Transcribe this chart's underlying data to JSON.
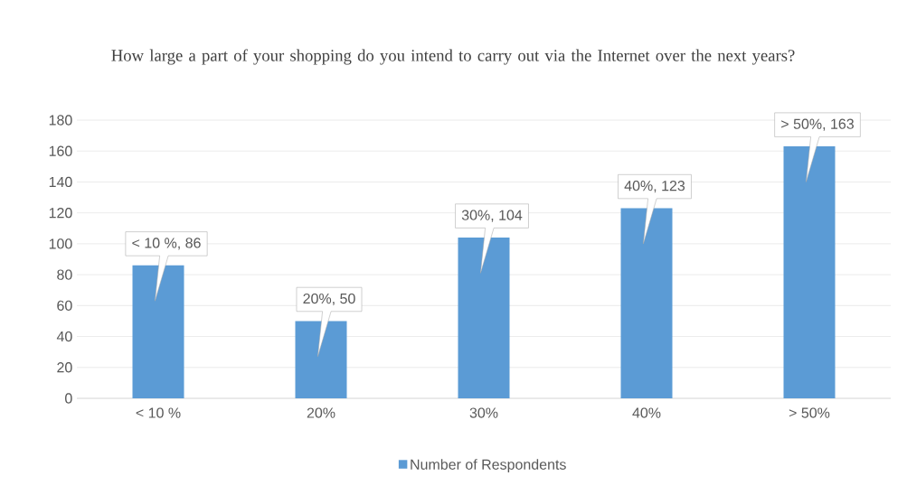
{
  "chart_data": {
    "type": "bar",
    "title": "How large a part of your shopping do you intend to carry out via the Internet over the next years?",
    "categories": [
      "< 10 %",
      "20%",
      "30%",
      "40%",
      "> 50%"
    ],
    "series": [
      {
        "name": "Number of Respondents",
        "color": "#5b9bd5",
        "values": [
          86,
          50,
          104,
          123,
          163
        ],
        "value_labels": [
          "< 10 %, 86",
          "20%, 50",
          "30%, 104",
          "40%, 123",
          "> 50%, 163"
        ]
      }
    ],
    "ylim": [
      0,
      180
    ],
    "yticks": [
      0,
      20,
      40,
      60,
      80,
      100,
      120,
      140,
      160,
      180
    ],
    "grid": "y",
    "legend": "bottom"
  }
}
